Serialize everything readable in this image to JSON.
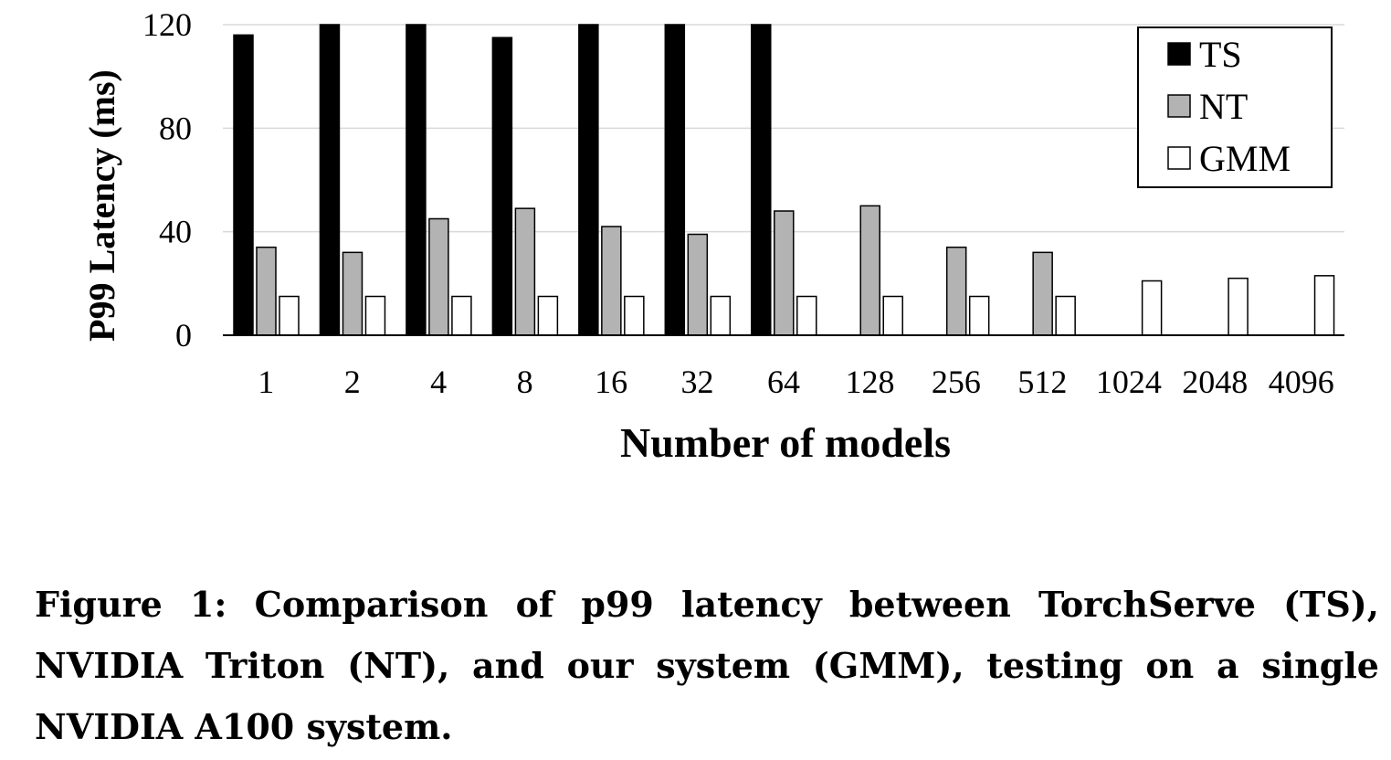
{
  "chart_data": {
    "type": "bar",
    "xlabel": "Number of models",
    "ylabel": "P99 Latency (ms)",
    "ylim": [
      0,
      120
    ],
    "yticks": [
      0,
      40,
      80,
      120
    ],
    "grid": true,
    "legend_position": "top-right",
    "categories": [
      "1",
      "2",
      "4",
      "8",
      "16",
      "32",
      "64",
      "128",
      "256",
      "512",
      "1024",
      "2048",
      "4096"
    ],
    "series": [
      {
        "name": "TS",
        "color": "#000000",
        "values": [
          116,
          120,
          120,
          115,
          120,
          120,
          120,
          null,
          null,
          null,
          null,
          null,
          null
        ]
      },
      {
        "name": "NT",
        "color": "#b3b3b3",
        "values": [
          34,
          32,
          45,
          49,
          42,
          39,
          48,
          50,
          34,
          32,
          null,
          null,
          null
        ]
      },
      {
        "name": "GMM",
        "color": "#ffffff",
        "values": [
          15,
          15,
          15,
          15,
          15,
          15,
          15,
          15,
          15,
          15,
          21,
          22,
          23
        ]
      }
    ]
  },
  "caption": "Figure 1: Comparison of p99 latency between TorchServe (TS), NVIDIA Triton (NT), and our system (GMM), testing on a single NVIDIA A100 system."
}
